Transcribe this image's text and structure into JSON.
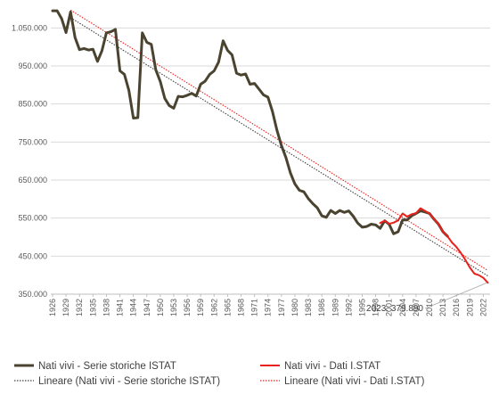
{
  "chart_data": {
    "type": "line",
    "ylim": [
      350000,
      1100000
    ],
    "xlim": [
      1926,
      2023
    ],
    "y_ticks": [
      {
        "value": 350000,
        "label": "350.000"
      },
      {
        "value": 450000,
        "label": "450.000"
      },
      {
        "value": 550000,
        "label": "550.000"
      },
      {
        "value": 650000,
        "label": "650.000"
      },
      {
        "value": 750000,
        "label": "750.000"
      },
      {
        "value": 850000,
        "label": "850.000"
      },
      {
        "value": 950000,
        "label": "950.000"
      },
      {
        "value": 1050000,
        "label": "1.050.000"
      }
    ],
    "x_tick_labels": [
      "1926",
      "1929",
      "1932",
      "1935",
      "1938",
      "1941",
      "1944",
      "1947",
      "1950",
      "1953",
      "1956",
      "1959",
      "1962",
      "1965",
      "1968",
      "1971",
      "1974",
      "1977",
      "1980",
      "1983",
      "1986",
      "1989",
      "1992",
      "1995",
      "1998",
      "2001",
      "2004",
      "2007",
      "2010",
      "2013",
      "2016",
      "2019",
      "2022"
    ],
    "grid": "horizontal",
    "legend_position": "bottom",
    "series": [
      {
        "name": "Nati vivi - Serie storiche ISTAT",
        "color": "#4a4330",
        "kind": "data",
        "x": [
          1926,
          1927,
          1928,
          1929,
          1930,
          1931,
          1932,
          1933,
          1934,
          1935,
          1936,
          1937,
          1938,
          1939,
          1940,
          1941,
          1942,
          1943,
          1944,
          1945,
          1946,
          1947,
          1948,
          1949,
          1950,
          1951,
          1952,
          1953,
          1954,
          1955,
          1956,
          1957,
          1958,
          1959,
          1960,
          1961,
          1962,
          1963,
          1964,
          1965,
          1966,
          1967,
          1968,
          1969,
          1970,
          1971,
          1972,
          1973,
          1974,
          1975,
          1976,
          1977,
          1978,
          1979,
          1980,
          1981,
          1982,
          1983,
          1984,
          1985,
          1986,
          1987,
          1988,
          1989,
          1990,
          1991,
          1992,
          1993,
          1994,
          1995,
          1996,
          1997,
          1998,
          1999,
          2000,
          2001,
          2002,
          2003,
          2004,
          2005,
          2006,
          2007,
          2008,
          2009,
          2010,
          2011,
          2012,
          2013,
          2014
        ],
        "values": [
          1095000,
          1095000,
          1075000,
          1038000,
          1092000,
          1025000,
          993000,
          996000,
          992000,
          994000,
          962000,
          990000,
          1037000,
          1040000,
          1046000,
          937000,
          928000,
          886000,
          813000,
          814000,
          1037000,
          1012000,
          1007000,
          940000,
          909000,
          865000,
          846000,
          839000,
          870000,
          869000,
          873000,
          878000,
          871000,
          902000,
          910000,
          928000,
          937000,
          960000,
          1016000,
          991000,
          979000,
          931000,
          926000,
          929000,
          902000,
          904000,
          889000,
          874000,
          868000,
          830000,
          781000,
          741000,
          709000,
          669000,
          640000,
          623000,
          619000,
          601000,
          588000,
          577000,
          556000,
          552000,
          570000,
          562000,
          570000,
          565000,
          569000,
          555000,
          537000,
          526000,
          528000,
          534000,
          532000,
          523000,
          543000,
          534000,
          509000,
          514000,
          545000,
          545000,
          556000,
          562000,
          569000,
          566000,
          562000,
          547000,
          534000,
          514000,
          502000
        ]
      },
      {
        "name": "Nati vivi - Dati I.STAT",
        "color": "#e8211d",
        "kind": "data",
        "x": [
          1999,
          2000,
          2001,
          2002,
          2003,
          2004,
          2005,
          2006,
          2007,
          2008,
          2009,
          2010,
          2011,
          2012,
          2013,
          2014,
          2015,
          2016,
          2017,
          2018,
          2019,
          2020,
          2021,
          2022,
          2023
        ],
        "values": [
          537000,
          543000,
          535000,
          538000,
          544000,
          562000,
          554000,
          560000,
          563000,
          576000,
          569000,
          562000,
          547000,
          534000,
          514000,
          502000,
          486000,
          474000,
          458000,
          440000,
          420000,
          404000,
          400000,
          393000,
          380000
        ]
      },
      {
        "name": "Lineare (Nati vivi - Serie storiche ISTAT)",
        "color": "#404040",
        "kind": "trend",
        "x": [
          1930,
          2023
        ],
        "values": [
          1077000,
          398000
        ]
      },
      {
        "name": "Lineare (Nati vivi - Dati I.STAT)",
        "color": "#e8211d",
        "kind": "trend",
        "x": [
          1930,
          2023
        ],
        "values": [
          1097000,
          412000
        ]
      }
    ],
    "annotations": [
      {
        "text": "2023: 379.890",
        "x": 2023,
        "y": 379890
      }
    ]
  }
}
